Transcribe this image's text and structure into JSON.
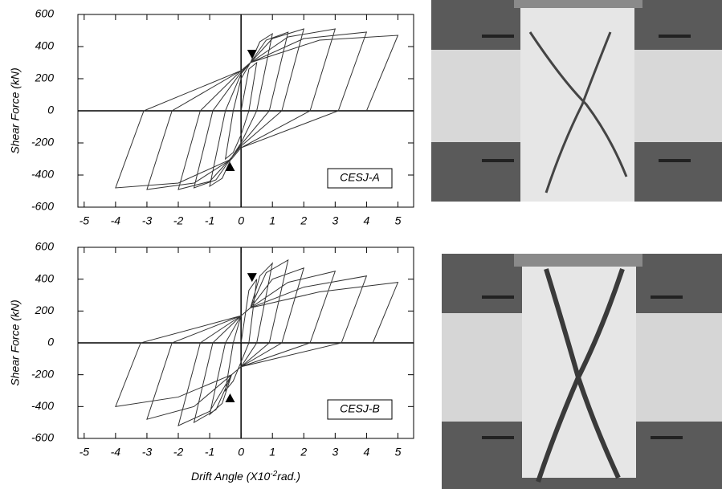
{
  "chart_data": [
    {
      "type": "line",
      "ylabel": "Shear Force (kN)",
      "annotation": "CESJ-A",
      "xlim": [
        -5.2,
        5.5
      ],
      "ylim": [
        -600,
        600
      ],
      "xticks": [
        -5,
        -4,
        -3,
        -2,
        -1,
        0,
        1,
        2,
        3,
        4,
        5
      ],
      "yticks": [
        -600,
        -400,
        -200,
        0,
        200,
        400,
        600
      ],
      "series": [
        {
          "color": "#333333",
          "x": [
            0,
            0.25,
            0.5,
            0.25,
            0,
            -0.25,
            -0.5,
            -0.25,
            0,
            0.3,
            0.6,
            1,
            0.5,
            0,
            -0.3,
            -0.6,
            -1,
            -0.5,
            0,
            0.3,
            0.8,
            1.5,
            0.9,
            0,
            -0.3,
            -0.8,
            -1.5,
            -0.9,
            0,
            0.3,
            1,
            2,
            1.3,
            0,
            -0.3,
            -1,
            -2,
            -1.3,
            0,
            0.3,
            1.5,
            3,
            2.2,
            0,
            -0.3,
            -1.5,
            -3,
            -2.2,
            0,
            0.3,
            2,
            4,
            3.1,
            0,
            -0.3,
            -2,
            -4,
            -3.1,
            0,
            0.3,
            2.5,
            5,
            4
          ],
          "values": [
            0,
            260,
            300,
            0,
            -150,
            -260,
            -300,
            0,
            200,
            300,
            430,
            480,
            0,
            -200,
            -290,
            -420,
            -470,
            0,
            230,
            300,
            440,
            490,
            0,
            -210,
            -290,
            -430,
            -480,
            0,
            240,
            300,
            450,
            510,
            0,
            -220,
            -290,
            -440,
            -490,
            0,
            250,
            300,
            460,
            510,
            0,
            -230,
            -300,
            -450,
            -490,
            0,
            250,
            300,
            450,
            490,
            0,
            -230,
            -300,
            -450,
            -480,
            0,
            250,
            300,
            440,
            470,
            0
          ]
        }
      ],
      "markers": {
        "x": [
          0.35,
          -0.35
        ],
        "values": [
          355,
          -350
        ]
      }
    },
    {
      "type": "line",
      "ylabel": "Shear Force (kN)",
      "annotation": "CESJ-B",
      "xlabel": [
        "Drift Angle (X10",
        "-2",
        "rad.)"
      ],
      "xlim": [
        -5.2,
        5.5
      ],
      "ylim": [
        -600,
        600
      ],
      "xticks": [
        -5,
        -4,
        -3,
        -2,
        -1,
        0,
        1,
        2,
        3,
        4,
        5
      ],
      "yticks": [
        -600,
        -400,
        -200,
        0,
        200,
        400,
        600
      ],
      "series": [
        {
          "color": "#333333",
          "x": [
            0,
            0.25,
            0.5,
            0.25,
            0,
            -0.25,
            -0.5,
            -0.25,
            0,
            0.3,
            0.6,
            1,
            0.5,
            0,
            -0.3,
            -0.6,
            -1,
            -0.5,
            0,
            0.3,
            0.8,
            1.5,
            0.9,
            0,
            -0.3,
            -0.8,
            -1.5,
            -0.9,
            0,
            0.3,
            1,
            2,
            1.3,
            0,
            -0.3,
            -1,
            -2,
            -1.3,
            0,
            0.3,
            1.5,
            3,
            2.2,
            0,
            -0.3,
            -1.5,
            -3,
            -2.2,
            0,
            0.3,
            2,
            4,
            3.2,
            0,
            -0.3,
            -2,
            -4,
            -3.2,
            0,
            0.3,
            2.5,
            5,
            4.2
          ],
          "values": [
            0,
            330,
            400,
            0,
            -120,
            -240,
            -300,
            0,
            170,
            220,
            420,
            500,
            0,
            -150,
            -200,
            -380,
            -450,
            0,
            170,
            220,
            440,
            520,
            0,
            -150,
            -200,
            -420,
            -500,
            0,
            170,
            220,
            400,
            470,
            0,
            -150,
            -200,
            -430,
            -520,
            0,
            170,
            220,
            380,
            450,
            0,
            -150,
            -200,
            -400,
            -480,
            0,
            170,
            220,
            350,
            420,
            0,
            -150,
            -200,
            -340,
            -400,
            0,
            170,
            220,
            320,
            380,
            0
          ]
        }
      ],
      "markers": {
        "x": [
          0.35,
          -0.35
        ],
        "values": [
          413,
          -348
        ]
      }
    }
  ]
}
